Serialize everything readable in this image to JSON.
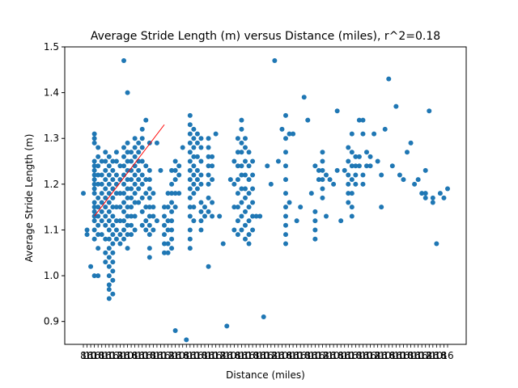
{
  "chart_data": {
    "type": "scatter",
    "title": "Average Stride Length (m) versus Distance (miles), r^2=0.18",
    "xlabel": "Distance (miles)",
    "ylabel": "Average Stride Length (m)",
    "ylim": [
      0.85,
      1.5
    ],
    "y_ticks": [
      0.9,
      1.0,
      1.1,
      1.2,
      1.3,
      1.4,
      1.5
    ],
    "x_category_count": 100,
    "x_tick_labels": [
      "8",
      "16",
      "10",
      "16",
      "10",
      "8",
      "16",
      "10",
      "16",
      "12",
      "8",
      "16",
      "10",
      "16"
    ],
    "grid": false,
    "point_color": "#1f77b4",
    "trend_color": "#ff0000",
    "trend": {
      "from": [
        3,
        1.13
      ],
      "to": [
        22,
        1.33
      ]
    },
    "columns": [
      {
        "x": 0,
        "values": [
          1.18
        ]
      },
      {
        "x": 1,
        "values": [
          1.1,
          1.09
        ]
      },
      {
        "x": 2,
        "values": [
          1.02
        ]
      },
      {
        "x": 3,
        "values": [
          1.31,
          1.3,
          1.29,
          1.25,
          1.24,
          1.23,
          1.22,
          1.21,
          1.2,
          1.19,
          1.18,
          1.16,
          1.15,
          1.14,
          1.13,
          1.12,
          1.1,
          1.08,
          1.0
        ]
      },
      {
        "x": 4,
        "values": [
          1.28,
          1.26,
          1.24,
          1.22,
          1.2,
          1.17,
          1.15,
          1.13,
          1.11,
          1.09,
          1.06,
          1.0
        ]
      },
      {
        "x": 5,
        "values": [
          1.25,
          1.22,
          1.2,
          1.18,
          1.16,
          1.14,
          1.12,
          1.09
        ]
      },
      {
        "x": 6,
        "values": [
          1.27,
          1.25,
          1.23,
          1.21,
          1.19,
          1.17,
          1.15,
          1.13,
          1.11,
          1.08,
          1.05,
          1.03
        ]
      },
      {
        "x": 7,
        "values": [
          1.26,
          1.24,
          1.22,
          1.2,
          1.18,
          1.16,
          1.14,
          1.12,
          1.1,
          1.08,
          1.06,
          1.04,
          1.02,
          1.0,
          0.98,
          0.97,
          0.95
        ]
      },
      {
        "x": 8,
        "values": [
          1.25,
          1.23,
          1.21,
          1.19,
          1.17,
          1.15,
          1.13,
          1.11,
          1.09,
          1.07,
          1.05,
          1.03,
          1.01,
          0.99,
          0.96
        ]
      },
      {
        "x": 9,
        "values": [
          1.27,
          1.25,
          1.22,
          1.2,
          1.18,
          1.15,
          1.12,
          1.1,
          1.08
        ]
      },
      {
        "x": 10,
        "values": [
          1.24,
          1.21,
          1.18,
          1.15,
          1.12,
          1.09,
          1.07
        ]
      },
      {
        "x": 11,
        "values": [
          1.47,
          1.28,
          1.26,
          1.24,
          1.22,
          1.2,
          1.18,
          1.16,
          1.14,
          1.12,
          1.1,
          1.08
        ]
      },
      {
        "x": 12,
        "values": [
          1.4,
          1.29,
          1.27,
          1.25,
          1.23,
          1.21,
          1.19,
          1.17,
          1.15,
          1.13,
          1.11,
          1.09,
          1.06
        ]
      },
      {
        "x": 13,
        "values": [
          1.27,
          1.25,
          1.23,
          1.21,
          1.19,
          1.17,
          1.15,
          1.13,
          1.11,
          1.09
        ]
      },
      {
        "x": 14,
        "values": [
          1.3,
          1.28,
          1.26,
          1.24,
          1.22,
          1.2,
          1.18,
          1.16,
          1.13,
          1.1
        ]
      },
      {
        "x": 15,
        "values": [
          1.29,
          1.27,
          1.25,
          1.23,
          1.21,
          1.19,
          1.16
        ]
      },
      {
        "x": 16,
        "values": [
          1.32,
          1.3,
          1.28,
          1.25,
          1.22,
          1.2,
          1.17,
          1.14,
          1.11
        ]
      },
      {
        "x": 17,
        "values": [
          1.34,
          1.24,
          1.21,
          1.18,
          1.15,
          1.12,
          1.1
        ]
      },
      {
        "x": 18,
        "values": [
          1.29,
          1.23,
          1.21,
          1.19,
          1.17,
          1.15,
          1.13,
          1.11,
          1.09,
          1.06,
          1.04
        ]
      },
      {
        "x": 19,
        "values": [
          1.18,
          1.15,
          1.13,
          1.1
        ]
      },
      {
        "x": 20,
        "values": [
          1.29,
          1.12
        ]
      },
      {
        "x": 21,
        "values": [
          1.23
        ]
      },
      {
        "x": 22,
        "values": [
          1.15,
          1.13,
          1.11,
          1.09,
          1.07,
          1.05
        ]
      },
      {
        "x": 23,
        "values": [
          1.18,
          1.15,
          1.12,
          1.1,
          1.07,
          1.05
        ]
      },
      {
        "x": 24,
        "values": [
          1.23,
          1.2,
          1.18,
          1.16,
          1.14,
          1.12,
          1.1,
          1.08,
          1.06
        ]
      },
      {
        "x": 25,
        "values": [
          1.25,
          1.23,
          1.21,
          1.18,
          1.15,
          0.88
        ]
      },
      {
        "x": 26,
        "values": [
          1.24,
          1.22,
          1.18
        ]
      },
      {
        "x": 27,
        "values": [
          1.28
        ]
      },
      {
        "x": 28,
        "values": [
          0.86
        ]
      },
      {
        "x": 29,
        "values": [
          1.35,
          1.33,
          1.31,
          1.29,
          1.27,
          1.25,
          1.23,
          1.21,
          1.19,
          1.17,
          1.15,
          1.13,
          1.1,
          1.08,
          1.06
        ]
      },
      {
        "x": 30,
        "values": [
          1.32,
          1.3,
          1.28,
          1.26,
          1.24,
          1.22,
          1.2,
          1.18,
          1.15,
          1.12
        ]
      },
      {
        "x": 31,
        "values": [
          1.31,
          1.29,
          1.26,
          1.23,
          1.21,
          1.19
        ]
      },
      {
        "x": 32,
        "values": [
          1.3,
          1.28,
          1.25,
          1.22,
          1.2,
          1.16,
          1.14,
          1.12,
          1.1
        ]
      },
      {
        "x": 33,
        "values": [
          1.15,
          1.13
        ]
      },
      {
        "x": 34,
        "values": [
          1.3,
          1.28,
          1.26,
          1.24,
          1.22,
          1.2,
          1.17,
          1.14,
          1.02
        ]
      },
      {
        "x": 35,
        "values": [
          1.26,
          1.24,
          1.21,
          1.16,
          1.13
        ]
      },
      {
        "x": 36,
        "values": [
          1.31
        ]
      },
      {
        "x": 37,
        "values": [
          1.13
        ]
      },
      {
        "x": 38,
        "values": [
          1.07
        ]
      },
      {
        "x": 39,
        "values": [
          0.89
        ]
      },
      {
        "x": 40,
        "values": [
          1.21
        ]
      },
      {
        "x": 41,
        "values": [
          1.25,
          1.2,
          1.15,
          1.1
        ]
      },
      {
        "x": 42,
        "values": [
          1.3,
          1.27,
          1.24,
          1.21,
          1.18,
          1.15,
          1.12,
          1.09
        ]
      },
      {
        "x": 43,
        "values": [
          1.34,
          1.32,
          1.29,
          1.27,
          1.24,
          1.22,
          1.19,
          1.16,
          1.13,
          1.1
        ]
      },
      {
        "x": 44,
        "values": [
          1.3,
          1.28,
          1.25,
          1.22,
          1.19,
          1.17,
          1.14,
          1.11,
          1.08
        ]
      },
      {
        "x": 45,
        "values": [
          1.27,
          1.24,
          1.21,
          1.18,
          1.15,
          1.12,
          1.09,
          1.07
        ]
      },
      {
        "x": 46,
        "values": [
          1.25,
          1.22,
          1.19,
          1.16,
          1.13,
          1.1
        ]
      },
      {
        "x": 47,
        "values": [
          1.13
        ]
      },
      {
        "x": 48,
        "values": [
          1.13
        ]
      },
      {
        "x": 49,
        "values": [
          0.91
        ]
      },
      {
        "x": 50,
        "values": [
          1.24
        ]
      },
      {
        "x": 51,
        "values": [
          1.2
        ]
      },
      {
        "x": 52,
        "values": [
          1.47
        ]
      },
      {
        "x": 53,
        "values": [
          1.25
        ]
      },
      {
        "x": 54,
        "values": [
          1.32
        ]
      },
      {
        "x": 55,
        "values": [
          1.35,
          1.3,
          1.27,
          1.24,
          1.21,
          1.18,
          1.15,
          1.13,
          1.11,
          1.09,
          1.07
        ]
      },
      {
        "x": 56,
        "values": [
          1.31,
          1.16
        ]
      },
      {
        "x": 57,
        "values": [
          1.31
        ]
      },
      {
        "x": 58,
        "values": [
          1.12
        ]
      },
      {
        "x": 59,
        "values": [
          1.15
        ]
      },
      {
        "x": 60,
        "values": [
          1.39
        ]
      },
      {
        "x": 61,
        "values": [
          1.34
        ]
      },
      {
        "x": 62,
        "values": [
          1.18
        ]
      },
      {
        "x": 63,
        "values": [
          1.24,
          1.14,
          1.12,
          1.1,
          1.08
        ]
      },
      {
        "x": 64,
        "values": [
          1.23,
          1.21
        ]
      },
      {
        "x": 65,
        "values": [
          1.27,
          1.25,
          1.23,
          1.21,
          1.19,
          1.17
        ]
      },
      {
        "x": 66,
        "values": [
          1.22,
          1.13
        ]
      },
      {
        "x": 67,
        "values": [
          1.21
        ]
      },
      {
        "x": 68,
        "values": [
          1.2
        ]
      },
      {
        "x": 69,
        "values": [
          1.36,
          1.23
        ]
      },
      {
        "x": 70,
        "values": [
          1.12
        ]
      },
      {
        "x": 71,
        "values": [
          1.23
        ]
      },
      {
        "x": 72,
        "values": [
          1.28,
          1.25,
          1.22,
          1.2,
          1.18,
          1.16
        ]
      },
      {
        "x": 73,
        "values": [
          1.31,
          1.27,
          1.24,
          1.21,
          1.18,
          1.15,
          1.13
        ]
      },
      {
        "x": 74,
        "values": [
          1.26,
          1.24,
          1.22,
          1.2
        ]
      },
      {
        "x": 75,
        "values": [
          1.34,
          1.26,
          1.24
        ]
      },
      {
        "x": 76,
        "values": [
          1.34,
          1.31,
          1.22,
          1.2
        ]
      },
      {
        "x": 77,
        "values": [
          1.27,
          1.24
        ]
      },
      {
        "x": 78,
        "values": [
          1.26,
          1.24
        ]
      },
      {
        "x": 79,
        "values": [
          1.31
        ]
      },
      {
        "x": 80,
        "values": [
          1.25
        ]
      },
      {
        "x": 81,
        "values": [
          1.22,
          1.15
        ]
      },
      {
        "x": 82,
        "values": [
          1.32
        ]
      },
      {
        "x": 83,
        "values": [
          1.43
        ]
      },
      {
        "x": 84,
        "values": [
          1.24
        ]
      },
      {
        "x": 85,
        "values": [
          1.37
        ]
      },
      {
        "x": 86,
        "values": [
          1.22
        ]
      },
      {
        "x": 87,
        "values": [
          1.21
        ]
      },
      {
        "x": 88,
        "values": [
          1.27
        ]
      },
      {
        "x": 89,
        "values": [
          1.29
        ]
      },
      {
        "x": 90,
        "values": [
          1.2
        ]
      },
      {
        "x": 91,
        "values": [
          1.21
        ]
      },
      {
        "x": 92,
        "values": [
          1.18
        ]
      },
      {
        "x": 93,
        "values": [
          1.23,
          1.18,
          1.17
        ]
      },
      {
        "x": 94,
        "values": [
          1.36
        ]
      },
      {
        "x": 95,
        "values": [
          1.17,
          1.16
        ]
      },
      {
        "x": 96,
        "values": [
          1.07
        ]
      },
      {
        "x": 97,
        "values": [
          1.18
        ]
      },
      {
        "x": 98,
        "values": [
          1.17
        ]
      },
      {
        "x": 99,
        "values": [
          1.19
        ]
      }
    ]
  }
}
